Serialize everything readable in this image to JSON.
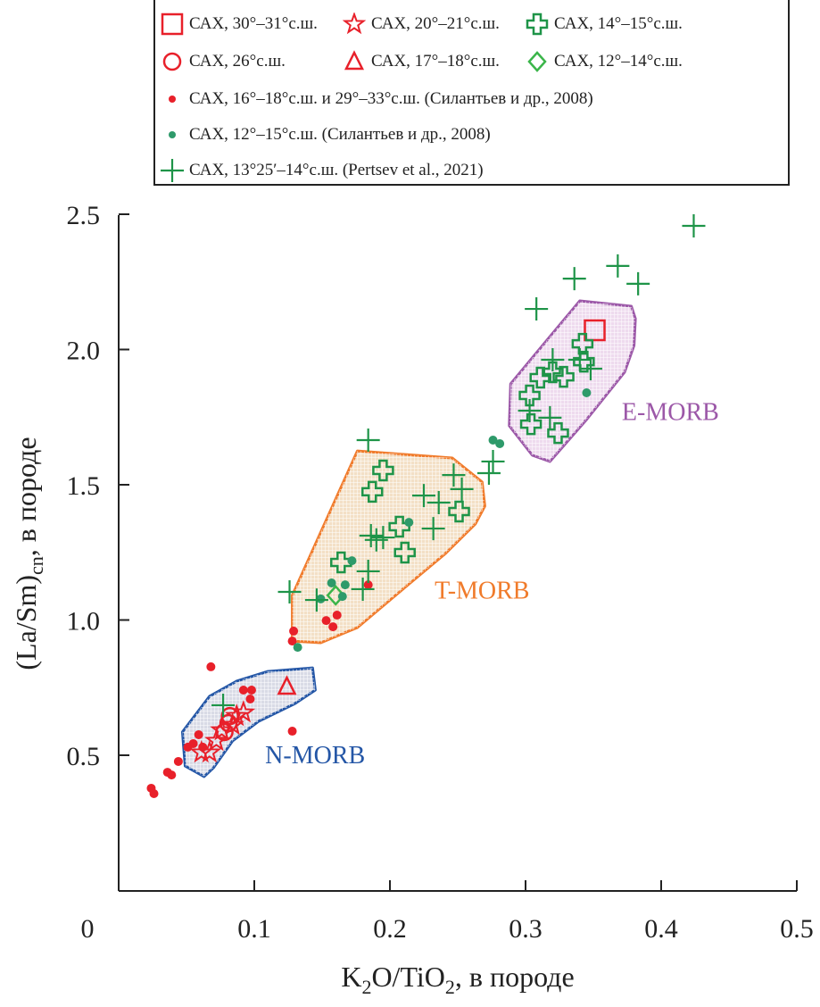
{
  "chart_data": {
    "type": "scatter",
    "xlabel": {
      "pre": "K",
      "sub1": "2",
      "mid": "O/TiO",
      "sub2": "2",
      "post": ", в породе"
    },
    "ylabel": {
      "pre": "(La/Sm)",
      "sub": "cn",
      "post": ", в породе"
    },
    "xlim": [
      0,
      0.5
    ],
    "ylim": [
      0.25,
      2.5
    ],
    "xticks": [
      {
        "v": 0,
        "label": "0"
      },
      {
        "v": 0.1,
        "label": "0.1"
      },
      {
        "v": 0.2,
        "label": "0.2"
      },
      {
        "v": 0.3,
        "label": "0.3"
      },
      {
        "v": 0.4,
        "label": "0.4"
      },
      {
        "v": 0.5,
        "label": "0.5"
      }
    ],
    "yticks": [
      {
        "v": 0.5,
        "label": "0.5"
      },
      {
        "v": 1.0,
        "label": "1.0"
      },
      {
        "v": 1.5,
        "label": "1.5"
      },
      {
        "v": 2.0,
        "label": "2.0"
      },
      {
        "v": 2.5,
        "label": "2.5"
      }
    ],
    "regions": [
      {
        "name": "N-MORB",
        "stroke": "#2456a6",
        "fill": "#d9dbe6",
        "label_at": [
          0.108,
          0.47
        ],
        "polygon": [
          [
            0.047,
            0.586
          ],
          [
            0.067,
            0.718
          ],
          [
            0.087,
            0.774
          ],
          [
            0.11,
            0.81
          ],
          [
            0.143,
            0.823
          ],
          [
            0.145,
            0.741
          ],
          [
            0.13,
            0.691
          ],
          [
            0.103,
            0.625
          ],
          [
            0.084,
            0.553
          ],
          [
            0.07,
            0.454
          ],
          [
            0.063,
            0.421
          ],
          [
            0.049,
            0.46
          ]
        ]
      },
      {
        "name": "T-MORB",
        "stroke": "#f07b2b",
        "fill": "#f3e0c6",
        "label_at": [
          0.233,
          1.08
        ],
        "polygon": [
          [
            0.128,
            1.091
          ],
          [
            0.176,
            1.625
          ],
          [
            0.246,
            1.599
          ],
          [
            0.268,
            1.51
          ],
          [
            0.27,
            1.421
          ],
          [
            0.263,
            1.355
          ],
          [
            0.241,
            1.246
          ],
          [
            0.215,
            1.137
          ],
          [
            0.176,
            0.972
          ],
          [
            0.149,
            0.916
          ],
          [
            0.128,
            0.922
          ]
        ]
      },
      {
        "name": "E-MORB",
        "stroke": "#9c58a8",
        "fill": "#eedbee",
        "label_at": [
          0.371,
          1.74
        ],
        "polygon": [
          [
            0.34,
            2.18
          ],
          [
            0.378,
            2.16
          ],
          [
            0.381,
            2.114
          ],
          [
            0.38,
            2.015
          ],
          [
            0.373,
            1.916
          ],
          [
            0.345,
            1.741
          ],
          [
            0.318,
            1.586
          ],
          [
            0.305,
            1.609
          ],
          [
            0.288,
            1.718
          ],
          [
            0.289,
            1.873
          ],
          [
            0.318,
            2.048
          ]
        ]
      }
    ],
    "series": [
      {
        "name": "САХ, 30°–31°с.ш.",
        "marker": "square",
        "color": "#e8202a",
        "points": [
          [
            0.351,
            2.071
          ]
        ]
      },
      {
        "name": "САХ, 20°–21°с.ш.",
        "marker": "star",
        "color": "#e8202a",
        "points": [
          [
            0.092,
            0.658
          ],
          [
            0.087,
            0.645
          ],
          [
            0.084,
            0.612
          ],
          [
            0.076,
            0.592
          ],
          [
            0.072,
            0.553
          ],
          [
            0.067,
            0.51
          ],
          [
            0.061,
            0.51
          ]
        ]
      },
      {
        "name": "САХ, 14°–15°с.ш.",
        "marker": "plus-outline",
        "color": "#1e9448",
        "points": [
          [
            0.195,
            1.553
          ],
          [
            0.187,
            1.474
          ],
          [
            0.207,
            1.345
          ],
          [
            0.211,
            1.249
          ],
          [
            0.251,
            1.401
          ],
          [
            0.164,
            1.213
          ],
          [
            0.342,
            2.021
          ],
          [
            0.343,
            1.955
          ],
          [
            0.328,
            1.899
          ],
          [
            0.311,
            1.896
          ],
          [
            0.32,
            1.916
          ],
          [
            0.303,
            1.83
          ],
          [
            0.304,
            1.724
          ],
          [
            0.324,
            1.691
          ]
        ]
      },
      {
        "name": "САХ, 26°с.ш.",
        "marker": "circle",
        "color": "#e8202a",
        "points": [
          [
            0.082,
            0.645
          ],
          [
            0.081,
            0.619
          ],
          [
            0.078,
            0.586
          ]
        ]
      },
      {
        "name": "САХ, 17°–18°с.ш.",
        "marker": "triangle",
        "color": "#e8202a",
        "points": [
          [
            0.124,
            0.754
          ]
        ]
      },
      {
        "name": "САХ, 12°–14°с.ш.",
        "marker": "diamond",
        "color": "#3bb54a",
        "points": [
          [
            0.16,
            1.091
          ]
        ]
      },
      {
        "name": "САХ, 16°–18°с.ш. и 29°–33°с.ш. (Силантьев и др., 2008)",
        "marker": "dot",
        "color": "#e8202a",
        "points": [
          [
            0.024,
            0.378
          ],
          [
            0.026,
            0.358
          ],
          [
            0.036,
            0.437
          ],
          [
            0.039,
            0.427
          ],
          [
            0.044,
            0.477
          ],
          [
            0.051,
            0.53
          ],
          [
            0.055,
            0.543
          ],
          [
            0.059,
            0.576
          ],
          [
            0.062,
            0.53
          ],
          [
            0.068,
            0.827
          ],
          [
            0.092,
            0.741
          ],
          [
            0.098,
            0.741
          ],
          [
            0.097,
            0.708
          ],
          [
            0.128,
            0.589
          ],
          [
            0.184,
            1.13
          ],
          [
            0.161,
            1.018
          ],
          [
            0.153,
            0.998
          ],
          [
            0.158,
            0.975
          ],
          [
            0.129,
            0.959
          ],
          [
            0.128,
            0.922
          ]
        ]
      },
      {
        "name": "САХ, 12°–15°с.ш. (Силантьев и др., 2008)",
        "marker": "dot",
        "color": "#2e9a6a",
        "points": [
          [
            0.214,
            1.361
          ],
          [
            0.172,
            1.219
          ],
          [
            0.157,
            1.137
          ],
          [
            0.167,
            1.13
          ],
          [
            0.165,
            1.087
          ],
          [
            0.149,
            1.078
          ],
          [
            0.132,
            0.899
          ],
          [
            0.345,
            1.84
          ],
          [
            0.276,
            1.665
          ],
          [
            0.281,
            1.652
          ]
        ]
      },
      {
        "name": "САХ, 13°25′–14°с.ш. (Pertsev et al., 2021)",
        "marker": "cross",
        "color": "#1e9448",
        "points": [
          [
            0.184,
            1.665
          ],
          [
            0.247,
            1.536
          ],
          [
            0.253,
            1.484
          ],
          [
            0.225,
            1.46
          ],
          [
            0.236,
            1.434
          ],
          [
            0.232,
            1.338
          ],
          [
            0.186,
            1.312
          ],
          [
            0.19,
            1.296
          ],
          [
            0.195,
            1.305
          ],
          [
            0.184,
            1.18
          ],
          [
            0.18,
            1.114
          ],
          [
            0.126,
            1.104
          ],
          [
            0.146,
            1.074
          ],
          [
            0.273,
            1.543
          ],
          [
            0.276,
            1.586
          ],
          [
            0.077,
            0.685
          ],
          [
            0.424,
            2.457
          ],
          [
            0.368,
            2.309
          ],
          [
            0.383,
            2.243
          ],
          [
            0.336,
            2.262
          ],
          [
            0.308,
            2.15
          ],
          [
            0.32,
            1.962
          ],
          [
            0.34,
            1.962
          ],
          [
            0.348,
            1.929
          ],
          [
            0.303,
            1.774
          ],
          [
            0.318,
            1.748
          ]
        ]
      }
    ],
    "legend_placement": "top"
  }
}
